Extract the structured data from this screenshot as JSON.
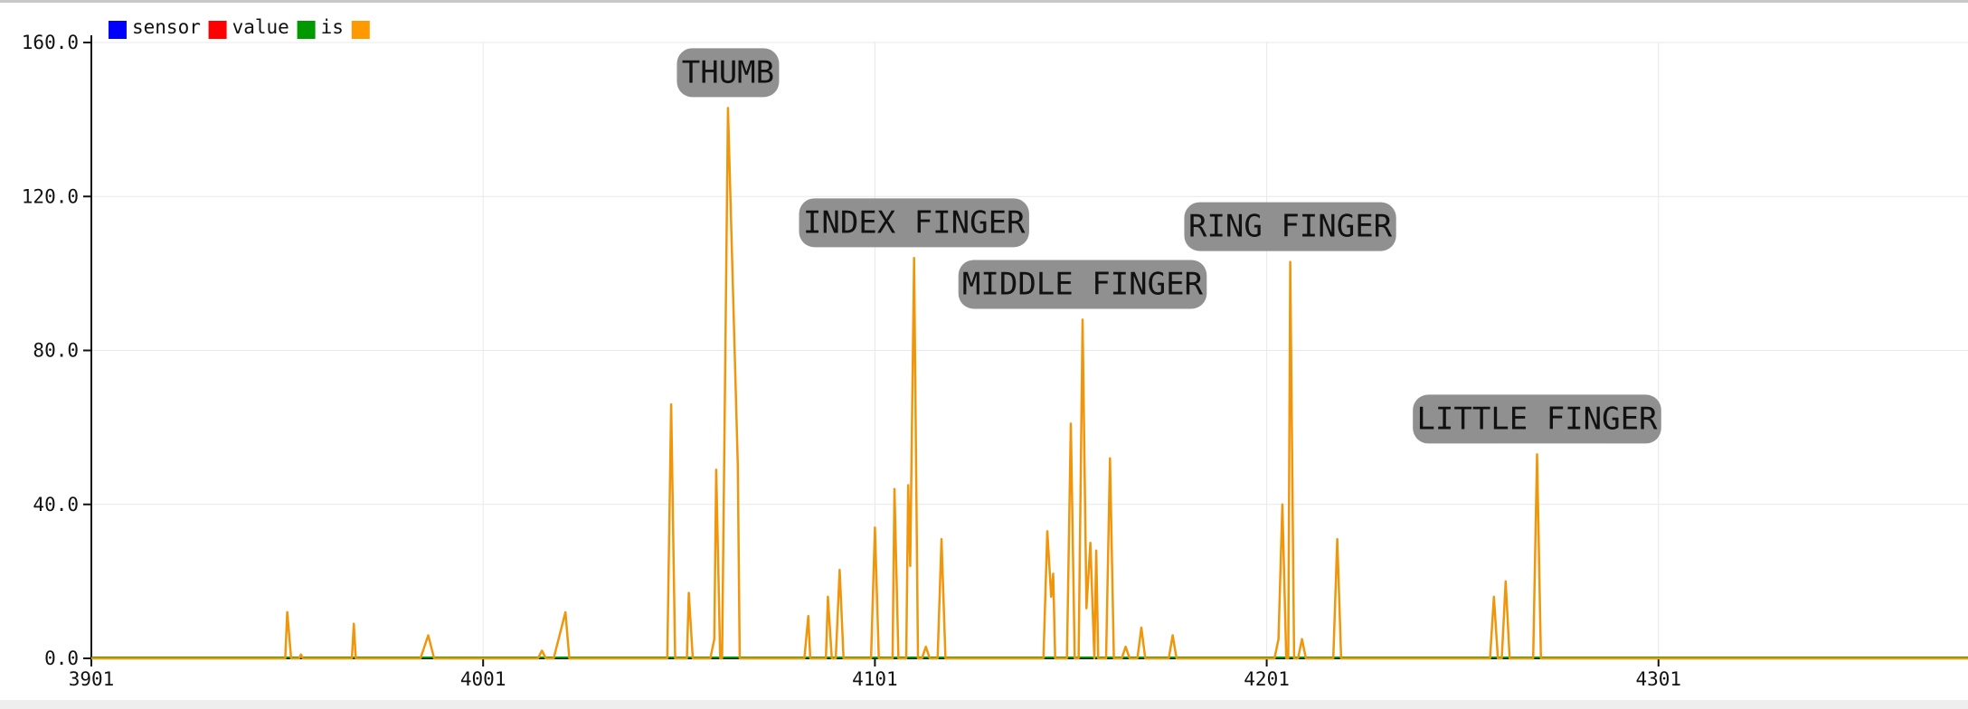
{
  "chart_data": {
    "type": "line",
    "title": "",
    "xlabel": "",
    "ylabel": "",
    "xlim": [
      3901,
      4380
    ],
    "ylim": [
      0,
      160
    ],
    "x_ticks": [
      "3901",
      "4001",
      "4101",
      "4201",
      "4301"
    ],
    "y_ticks": [
      "0.0",
      "40.0",
      "80.0",
      "120.0",
      "160.0"
    ],
    "grid": true,
    "legend_position": "top-left",
    "legend": [
      {
        "label": "sensor",
        "color": "#0000ff"
      },
      {
        "label": "value",
        "color": "#ff0000"
      },
      {
        "label": "is",
        "color": "#009900"
      },
      {
        "label": "",
        "color": "#ff9900"
      }
    ],
    "series": [
      {
        "color": "#f0960a",
        "points": [
          [
            3901,
            0
          ],
          [
            3950.5,
            0
          ],
          [
            3951,
            12
          ],
          [
            3952,
            0
          ],
          [
            3954,
            0
          ],
          [
            3954.5,
            1
          ],
          [
            3955,
            0
          ],
          [
            3967.5,
            0
          ],
          [
            3968,
            9
          ],
          [
            3968.5,
            0
          ],
          [
            3985,
            0
          ],
          [
            3987,
            6
          ],
          [
            3988.5,
            0
          ],
          [
            4015,
            0
          ],
          [
            4016,
            2
          ],
          [
            4017,
            0
          ],
          [
            4019,
            0
          ],
          [
            4022,
            12
          ],
          [
            4023,
            0
          ],
          [
            4048,
            0
          ],
          [
            4049,
            66
          ],
          [
            4050,
            0
          ],
          [
            4053,
            0
          ],
          [
            4053.5,
            17
          ],
          [
            4054.5,
            0
          ],
          [
            4059,
            0
          ],
          [
            4060,
            5
          ],
          [
            4060.5,
            49
          ],
          [
            4061.5,
            0
          ],
          [
            4062,
            0
          ],
          [
            4063.5,
            143
          ],
          [
            4066,
            50
          ],
          [
            4066.5,
            0
          ],
          [
            4083,
            0
          ],
          [
            4084,
            11
          ],
          [
            4084.5,
            0
          ],
          [
            4088.5,
            0
          ],
          [
            4089,
            16
          ],
          [
            4090,
            0
          ],
          [
            4091,
            0
          ],
          [
            4092,
            23
          ],
          [
            4093,
            0
          ],
          [
            4100,
            0
          ],
          [
            4101,
            34
          ],
          [
            4102,
            0
          ],
          [
            4105.5,
            0
          ],
          [
            4106,
            44
          ],
          [
            4107,
            0
          ],
          [
            4109,
            0
          ],
          [
            4109.5,
            45
          ],
          [
            4110,
            24
          ],
          [
            4111,
            104
          ],
          [
            4112,
            0
          ],
          [
            4113,
            0
          ],
          [
            4114,
            3
          ],
          [
            4115,
            0
          ],
          [
            4117,
            0
          ],
          [
            4118,
            31
          ],
          [
            4119,
            0
          ],
          [
            4144,
            0
          ],
          [
            4145,
            33
          ],
          [
            4146,
            16
          ],
          [
            4146.5,
            22
          ],
          [
            4147,
            0
          ],
          [
            4150,
            0
          ],
          [
            4151,
            61
          ],
          [
            4152,
            0
          ],
          [
            4153,
            0
          ],
          [
            4154,
            88
          ],
          [
            4155,
            13
          ],
          [
            4156,
            30
          ],
          [
            4157,
            0
          ],
          [
            4157.5,
            28
          ],
          [
            4158,
            0
          ],
          [
            4160,
            0
          ],
          [
            4161,
            52
          ],
          [
            4162,
            0
          ],
          [
            4164,
            0
          ],
          [
            4165,
            3
          ],
          [
            4166,
            0
          ],
          [
            4168,
            0
          ],
          [
            4169,
            8
          ],
          [
            4170,
            0
          ],
          [
            4176,
            0
          ],
          [
            4177,
            6
          ],
          [
            4178,
            0
          ],
          [
            4203,
            0
          ],
          [
            4204,
            5
          ],
          [
            4205,
            40
          ],
          [
            4206,
            0
          ],
          [
            4206.5,
            0
          ],
          [
            4207,
            103
          ],
          [
            4208,
            0
          ],
          [
            4209,
            0
          ],
          [
            4210,
            5
          ],
          [
            4211,
            0
          ],
          [
            4218,
            0
          ],
          [
            4219,
            31
          ],
          [
            4220,
            0
          ],
          [
            4258,
            0
          ],
          [
            4259,
            16
          ],
          [
            4260,
            0
          ],
          [
            4261,
            0
          ],
          [
            4262,
            20
          ],
          [
            4263,
            0
          ],
          [
            4269,
            0
          ],
          [
            4270,
            53
          ],
          [
            4271,
            0
          ],
          [
            4380,
            0
          ]
        ]
      }
    ],
    "annotations": [
      {
        "text": "THUMB",
        "x": 4063.5,
        "y": 143
      },
      {
        "text": "INDEX FINGER",
        "x": 4111,
        "y": 104
      },
      {
        "text": "MIDDLE FINGER",
        "x": 4154,
        "y": 88
      },
      {
        "text": "RING FINGER",
        "x": 4207,
        "y": 103
      },
      {
        "text": "LITTLE FINGER",
        "x": 4270,
        "y": 53
      }
    ]
  }
}
